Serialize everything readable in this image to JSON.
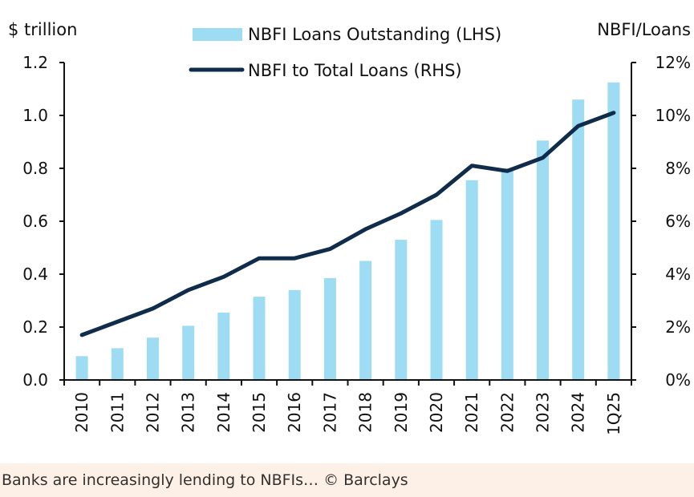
{
  "chart_data": {
    "type": "bar",
    "categories": [
      "2010",
      "2011",
      "2012",
      "2013",
      "2014",
      "2015",
      "2016",
      "2017",
      "2018",
      "2019",
      "2020",
      "2021",
      "2022",
      "2023",
      "2024",
      "1Q25"
    ],
    "series": [
      {
        "name": "NBFI Loans Outstanding (LHS)",
        "type": "bar",
        "axis": "left",
        "values": [
          0.09,
          0.12,
          0.16,
          0.205,
          0.255,
          0.315,
          0.34,
          0.385,
          0.45,
          0.53,
          0.605,
          0.755,
          0.8,
          0.905,
          1.06,
          1.125
        ]
      },
      {
        "name": "NBFI to Total Loans (RHS)",
        "type": "line",
        "axis": "right",
        "values": [
          1.7,
          2.2,
          2.7,
          3.4,
          3.9,
          4.6,
          4.6,
          4.95,
          5.7,
          6.3,
          7.0,
          8.1,
          7.9,
          8.4,
          9.6,
          10.1
        ]
      }
    ],
    "left_axis": {
      "title": "$ trillion",
      "ylim": [
        0,
        1.2
      ],
      "ticks": [
        "0.0",
        "0.2",
        "0.4",
        "0.6",
        "0.8",
        "1.0",
        "1.2"
      ]
    },
    "right_axis": {
      "title": "NBFI/Loans",
      "ylim": [
        0,
        12
      ],
      "ticks": [
        "0%",
        "2%",
        "4%",
        "6%",
        "8%",
        "10%",
        "12%"
      ]
    },
    "legend_position": "top-center",
    "grid": false,
    "colors": {
      "bar": "#9ddcf3",
      "line": "#0f2d4b",
      "axis": "#111111"
    }
  },
  "caption": "Banks are increasingly lending to NBFIs… © Barclays"
}
